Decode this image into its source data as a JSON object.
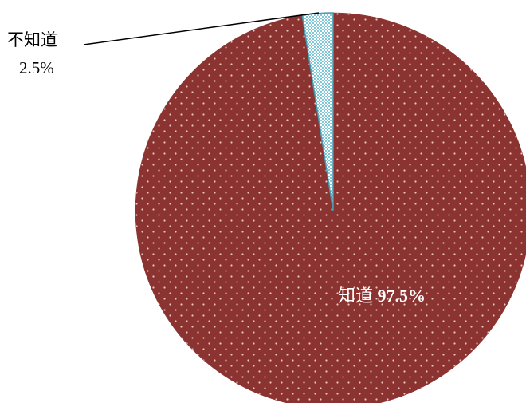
{
  "chart_data": {
    "type": "pie",
    "title": "",
    "slices": [
      {
        "label": "不知道",
        "value": 2.5,
        "value_label": "2.5%",
        "color": "#7ec8d8",
        "pattern": "checker"
      },
      {
        "label": "知道",
        "value": 97.5,
        "value_label": "97.5%",
        "color": "#8b3330",
        "pattern": "dots"
      }
    ],
    "legend": "none",
    "start_angle": "12 o'clock",
    "direction": "clockwise"
  }
}
